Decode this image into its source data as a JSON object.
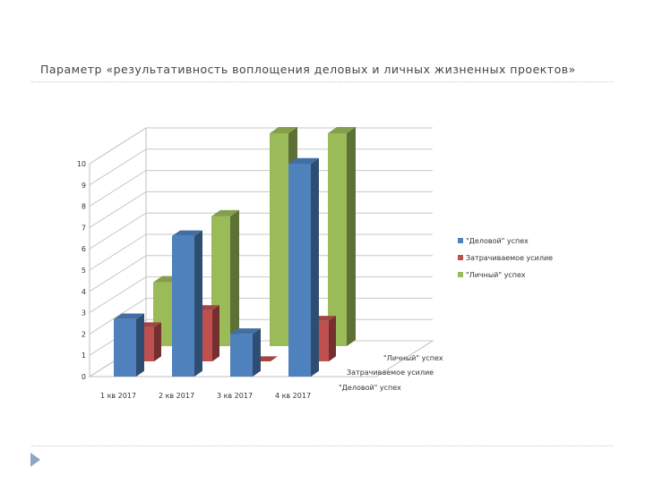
{
  "slide": {
    "title": "Параметр «результативность воплощения деловых и личных жизненных проектов»",
    "arrow_color": "#8fa7c4"
  },
  "chart_data": {
    "type": "bar",
    "title": "",
    "xlabel": "",
    "ylabel": "",
    "categories": [
      "1 кв 2017",
      "2 кв 2017",
      "3 кв 2017",
      "4 кв 2017"
    ],
    "yticks": [
      0,
      1,
      2,
      3,
      4,
      5,
      6,
      7,
      8,
      9,
      10
    ],
    "ylim": [
      0,
      10
    ],
    "grid": true,
    "legend_position": "right",
    "series": [
      {
        "name": "\"Деловой\" успех",
        "color": "#4f81bd",
        "values": [
          2.7,
          6.6,
          2.0,
          10.0
        ]
      },
      {
        "name": "Затрачиваемое усилие",
        "color": "#c0504d",
        "values": [
          1.6,
          2.4,
          0.0,
          1.9
        ]
      },
      {
        "name": "\"Личный\" успех",
        "color": "#9bbb59",
        "values": [
          3.0,
          6.1,
          10.0,
          10.0
        ]
      }
    ],
    "depth_labels": [
      "\"Личный\" успех",
      "Затрачиваемое усилие",
      "\"Деловой\" успех"
    ]
  }
}
